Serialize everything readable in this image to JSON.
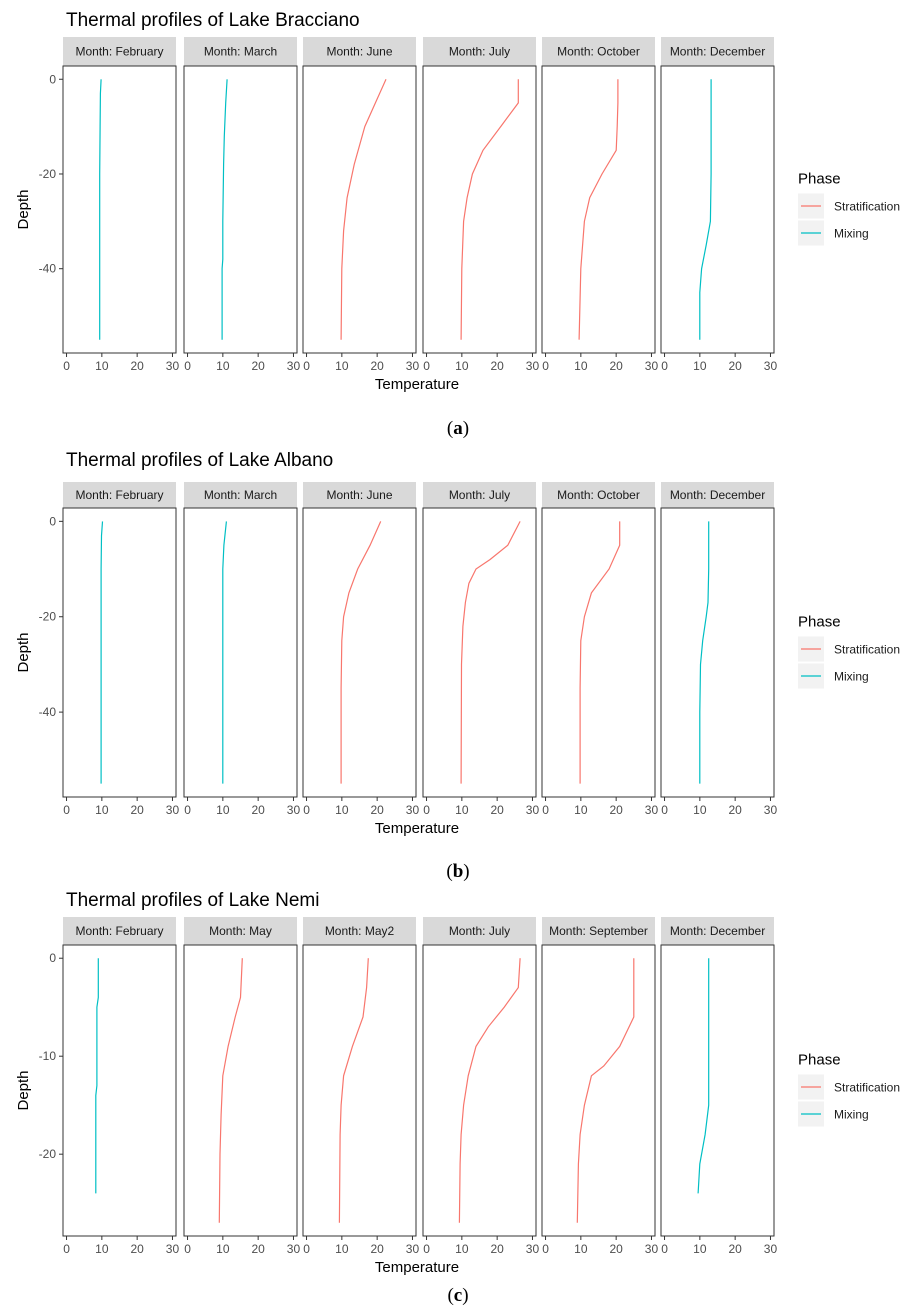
{
  "chart_data": [
    {
      "type": "line",
      "title": "Thermal profiles of Lake Bracciano",
      "caption_letter": "a",
      "xlabel": "Temperature",
      "ylabel": "Depth",
      "xlim": [
        -1,
        31
      ],
      "ylim": [
        -57.8,
        2.8
      ],
      "x_ticks": [
        0,
        10,
        20,
        30
      ],
      "y_ticks": [
        0,
        -20,
        -40
      ],
      "legend_title": "Phase",
      "legend": [
        {
          "name": "Stratification",
          "color": "#F8766D"
        },
        {
          "name": "Mixing",
          "color": "#00BFC4"
        }
      ],
      "panels": [
        {
          "label": "Month: February",
          "phase": "Mixing",
          "points": [
            [
              9.8,
              0
            ],
            [
              9.6,
              -3
            ],
            [
              9.5,
              -10
            ],
            [
              9.4,
              -20
            ],
            [
              9.4,
              -30
            ],
            [
              9.4,
              -40
            ],
            [
              9.4,
              -55
            ]
          ]
        },
        {
          "label": "Month: March",
          "phase": "Mixing",
          "points": [
            [
              11.2,
              0
            ],
            [
              10.8,
              -5
            ],
            [
              10.4,
              -12
            ],
            [
              10.2,
              -18
            ],
            [
              10.0,
              -30
            ],
            [
              10.0,
              -38
            ],
            [
              9.8,
              -40
            ],
            [
              9.8,
              -55
            ]
          ]
        },
        {
          "label": "Month: June",
          "phase": "Stratification",
          "points": [
            [
              22.5,
              0
            ],
            [
              19.5,
              -5
            ],
            [
              16.5,
              -10
            ],
            [
              13.5,
              -18
            ],
            [
              11.5,
              -25
            ],
            [
              10.5,
              -32
            ],
            [
              10.0,
              -40
            ],
            [
              9.8,
              -55
            ]
          ]
        },
        {
          "label": "Month: July",
          "phase": "Stratification",
          "points": [
            [
              26.0,
              0
            ],
            [
              26.0,
              -5
            ],
            [
              21.0,
              -10
            ],
            [
              16.0,
              -15
            ],
            [
              13.0,
              -20
            ],
            [
              11.5,
              -25
            ],
            [
              10.5,
              -30
            ],
            [
              10.0,
              -40
            ],
            [
              9.8,
              -55
            ]
          ]
        },
        {
          "label": "Month: October",
          "phase": "Stratification",
          "points": [
            [
              20.5,
              0
            ],
            [
              20.5,
              -5
            ],
            [
              20.3,
              -10
            ],
            [
              20.0,
              -15
            ],
            [
              16.0,
              -20
            ],
            [
              12.5,
              -25
            ],
            [
              11.0,
              -30
            ],
            [
              10.0,
              -40
            ],
            [
              9.5,
              -55
            ]
          ]
        },
        {
          "label": "Month: December",
          "phase": "Mixing",
          "points": [
            [
              13.2,
              0
            ],
            [
              13.2,
              -10
            ],
            [
              13.2,
              -20
            ],
            [
              13.0,
              -30
            ],
            [
              11.8,
              -35
            ],
            [
              10.5,
              -40
            ],
            [
              10.0,
              -45
            ],
            [
              10.0,
              -55
            ]
          ]
        }
      ]
    },
    {
      "type": "line",
      "title": "Thermal profiles of Lake Albano",
      "caption_letter": "b",
      "xlabel": "Temperature",
      "ylabel": "Depth",
      "xlim": [
        -1,
        31
      ],
      "ylim": [
        -57.8,
        2.8
      ],
      "x_ticks": [
        0,
        10,
        20,
        30
      ],
      "y_ticks": [
        0,
        -20,
        -40
      ],
      "legend_title": "Phase",
      "legend": [
        {
          "name": "Stratification",
          "color": "#F8766D"
        },
        {
          "name": "Mixing",
          "color": "#00BFC4"
        }
      ],
      "panels": [
        {
          "label": "Month: February",
          "phase": "Mixing",
          "points": [
            [
              10.2,
              0
            ],
            [
              9.9,
              -3
            ],
            [
              9.8,
              -10
            ],
            [
              9.8,
              -20
            ],
            [
              9.8,
              -55
            ]
          ]
        },
        {
          "label": "Month: March",
          "phase": "Mixing",
          "points": [
            [
              11.0,
              0
            ],
            [
              10.3,
              -5
            ],
            [
              10.0,
              -10
            ],
            [
              10.0,
              -20
            ],
            [
              10.0,
              -55
            ]
          ]
        },
        {
          "label": "Month: June",
          "phase": "Stratification",
          "points": [
            [
              21.0,
              0
            ],
            [
              18.0,
              -5
            ],
            [
              14.5,
              -10
            ],
            [
              12.0,
              -15
            ],
            [
              10.5,
              -20
            ],
            [
              10.0,
              -25
            ],
            [
              9.8,
              -35
            ],
            [
              9.8,
              -55
            ]
          ]
        },
        {
          "label": "Month: July",
          "phase": "Stratification",
          "points": [
            [
              26.5,
              0
            ],
            [
              23.0,
              -5
            ],
            [
              18.0,
              -8
            ],
            [
              14.0,
              -10
            ],
            [
              12.0,
              -13
            ],
            [
              11.0,
              -17
            ],
            [
              10.3,
              -22
            ],
            [
              9.9,
              -30
            ],
            [
              9.8,
              -55
            ]
          ]
        },
        {
          "label": "Month: October",
          "phase": "Stratification",
          "points": [
            [
              21.0,
              0
            ],
            [
              21.0,
              -5
            ],
            [
              18.0,
              -10
            ],
            [
              13.0,
              -15
            ],
            [
              11.0,
              -20
            ],
            [
              10.0,
              -25
            ],
            [
              9.8,
              -35
            ],
            [
              9.8,
              -55
            ]
          ]
        },
        {
          "label": "Month: December",
          "phase": "Mixing",
          "points": [
            [
              12.5,
              0
            ],
            [
              12.5,
              -10
            ],
            [
              12.3,
              -17
            ],
            [
              11.8,
              -20
            ],
            [
              10.8,
              -25
            ],
            [
              10.2,
              -30
            ],
            [
              10.0,
              -40
            ],
            [
              10.0,
              -55
            ]
          ]
        }
      ]
    },
    {
      "type": "line",
      "title": "Thermal profiles of Lake Nemi",
      "caption_letter": "c",
      "xlabel": "Temperature",
      "ylabel": "Depth",
      "xlim": [
        -1,
        31
      ],
      "ylim": [
        -28.35,
        1.35
      ],
      "x_ticks": [
        0,
        10,
        20,
        30
      ],
      "y_ticks": [
        0,
        -10,
        -20
      ],
      "legend_title": "Phase",
      "legend": [
        {
          "name": "Stratification",
          "color": "#F8766D"
        },
        {
          "name": "Mixing",
          "color": "#00BFC4"
        }
      ],
      "panels": [
        {
          "label": "Month: February",
          "phase": "Mixing",
          "points": [
            [
              9.0,
              0
            ],
            [
              9.0,
              -4
            ],
            [
              8.6,
              -5
            ],
            [
              8.6,
              -13
            ],
            [
              8.3,
              -14
            ],
            [
              8.3,
              -24
            ]
          ]
        },
        {
          "label": "Month: May",
          "phase": "Stratification",
          "points": [
            [
              15.5,
              0
            ],
            [
              15.0,
              -4
            ],
            [
              13.5,
              -6
            ],
            [
              11.5,
              -9
            ],
            [
              10.0,
              -12
            ],
            [
              9.5,
              -16
            ],
            [
              9.2,
              -20
            ],
            [
              9.0,
              -27
            ]
          ]
        },
        {
          "label": "Month: May2",
          "phase": "Stratification",
          "points": [
            [
              17.5,
              0
            ],
            [
              17.0,
              -3
            ],
            [
              16.0,
              -6
            ],
            [
              13.0,
              -9
            ],
            [
              10.5,
              -12
            ],
            [
              9.8,
              -15
            ],
            [
              9.5,
              -18
            ],
            [
              9.3,
              -27
            ]
          ]
        },
        {
          "label": "Month: July",
          "phase": "Stratification",
          "points": [
            [
              26.5,
              0
            ],
            [
              26.0,
              -3
            ],
            [
              22.0,
              -5
            ],
            [
              17.5,
              -7
            ],
            [
              14.0,
              -9
            ],
            [
              11.8,
              -12
            ],
            [
              10.5,
              -15
            ],
            [
              9.8,
              -18
            ],
            [
              9.5,
              -21
            ],
            [
              9.3,
              -27
            ]
          ]
        },
        {
          "label": "Month: September",
          "phase": "Stratification",
          "points": [
            [
              25.0,
              0
            ],
            [
              25.0,
              -3
            ],
            [
              25.0,
              -6
            ],
            [
              21.0,
              -9
            ],
            [
              16.5,
              -11
            ],
            [
              13.0,
              -12
            ],
            [
              11.0,
              -15
            ],
            [
              9.8,
              -18
            ],
            [
              9.3,
              -21
            ],
            [
              9.0,
              -27
            ]
          ]
        },
        {
          "label": "Month: December",
          "phase": "Mixing",
          "points": [
            [
              12.5,
              0
            ],
            [
              12.5,
              -5
            ],
            [
              12.5,
              -10
            ],
            [
              12.5,
              -15
            ],
            [
              11.5,
              -18
            ],
            [
              10.0,
              -21
            ],
            [
              9.5,
              -24
            ]
          ]
        }
      ]
    }
  ]
}
